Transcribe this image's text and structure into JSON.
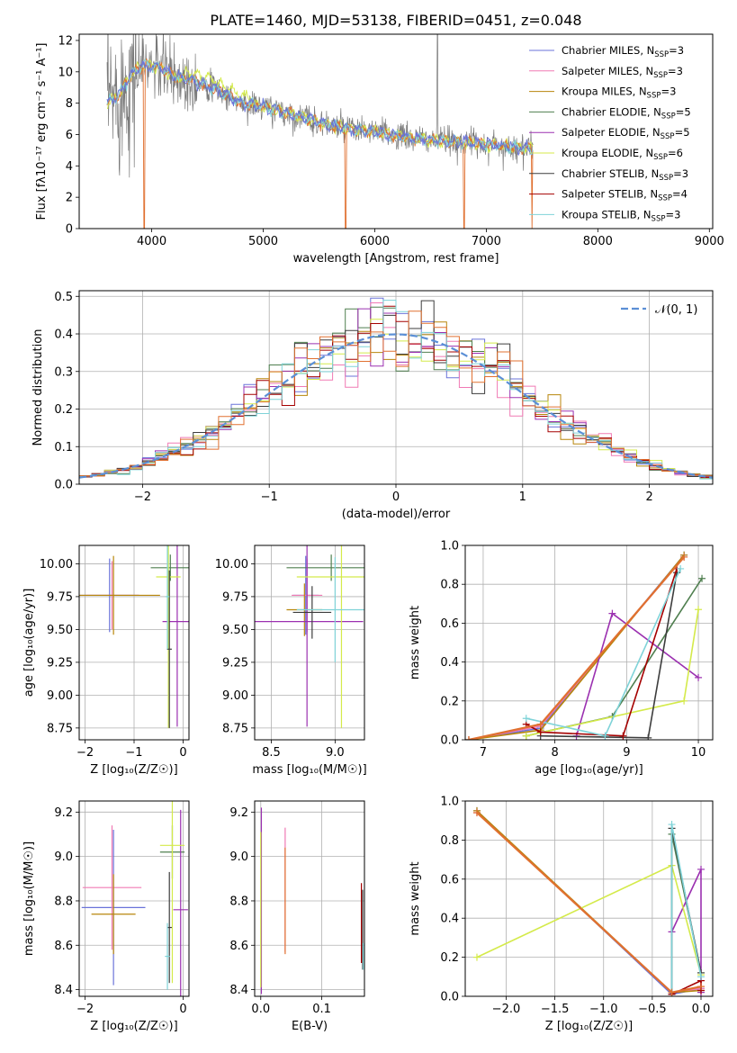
{
  "figure_title": "PLATE=1460, MJD=53138, FIBERID=0451, z=0.048",
  "colors": {
    "chabrier_miles": "#6a73d9",
    "salpeter_miles": "#f07ab4",
    "kroupa_miles": "#b8860b",
    "chabrier_elodie": "#4f7f4f",
    "salpeter_elodie": "#9b30b0",
    "kroupa_elodie": "#d4ea4a",
    "chabrier_stelib": "#3d3d3d",
    "salpeter_stelib": "#a50000",
    "kroupa_stelib": "#7fd3d8",
    "data": "#7a7a7a",
    "model_orange": "#e07030",
    "gaussian": "#5b8fd6"
  },
  "chart_data": [
    {
      "id": "spectrum",
      "type": "line",
      "title": "",
      "xlabel": "wavelength [Angstrom, rest frame]",
      "ylabel": "Flux [fλ10⁻¹⁷ erg cm⁻² s⁻¹ A⁻¹]",
      "xlim": [
        3350,
        9030
      ],
      "ylim": [
        0,
        12.4
      ],
      "xticks": [
        4000,
        5000,
        6000,
        7000,
        8000,
        9000
      ],
      "yticks": [
        0,
        2,
        4,
        6,
        8,
        10,
        12
      ],
      "grid": false,
      "legend_position": "top-right",
      "legend": [
        {
          "label": "Chabrier MILES, N",
          "sub": "SSP",
          "post": "=3",
          "color_key": "chabrier_miles"
        },
        {
          "label": "Salpeter MILES, N",
          "sub": "SSP",
          "post": "=3",
          "color_key": "salpeter_miles"
        },
        {
          "label": "Kroupa MILES, N",
          "sub": "SSP",
          "post": "=3",
          "color_key": "kroupa_miles"
        },
        {
          "label": "Chabrier ELODIE, N",
          "sub": "SSP",
          "post": "=5",
          "color_key": "chabrier_elodie"
        },
        {
          "label": "Salpeter ELODIE, N",
          "sub": "SSP",
          "post": "=5",
          "color_key": "salpeter_elodie"
        },
        {
          "label": "Kroupa ELODIE, N",
          "sub": "SSP",
          "post": "=6",
          "color_key": "kroupa_elodie"
        },
        {
          "label": "Chabrier STELIB, N",
          "sub": "SSP",
          "post": "=3",
          "color_key": "chabrier_stelib"
        },
        {
          "label": "Salpeter STELIB, N",
          "sub": "SSP",
          "post": "=4",
          "color_key": "salpeter_stelib"
        },
        {
          "label": "Kroupa STELIB, N",
          "sub": "SSP",
          "post": "=3",
          "color_key": "kroupa_stelib"
        }
      ],
      "continuum": [
        [
          3600,
          8.0
        ],
        [
          3700,
          8.5
        ],
        [
          3800,
          9.6
        ],
        [
          3900,
          10.4
        ],
        [
          4000,
          10.4
        ],
        [
          4100,
          10.2
        ],
        [
          4200,
          9.7
        ],
        [
          4400,
          9.4
        ],
        [
          4600,
          8.8
        ],
        [
          4800,
          8.0
        ],
        [
          5000,
          7.8
        ],
        [
          5200,
          7.4
        ],
        [
          5400,
          7.0
        ],
        [
          5600,
          6.6
        ],
        [
          5800,
          6.3
        ],
        [
          6000,
          6.2
        ],
        [
          6200,
          5.9
        ],
        [
          6400,
          5.7
        ],
        [
          6600,
          5.6
        ],
        [
          6800,
          5.5
        ],
        [
          7000,
          5.4
        ],
        [
          7200,
          5.2
        ],
        [
          7420,
          5.1
        ]
      ],
      "data_range": [
        3600,
        7420
      ],
      "model_dips": [
        [
          3934,
          0.0
        ],
        [
          5740,
          0.0
        ],
        [
          6800,
          0.0
        ],
        [
          7410,
          0.0
        ]
      ],
      "emission_spike": [
        6563,
        12.4
      ]
    },
    {
      "id": "residuals",
      "type": "histogram",
      "xlabel": "(data-model)/error",
      "ylabel": "Normed distribution",
      "xlim": [
        -2.5,
        2.5
      ],
      "ylim": [
        0,
        0.515
      ],
      "xticks": [
        -2,
        -1,
        0,
        1,
        2
      ],
      "yticks": [
        0.0,
        0.1,
        0.2,
        0.3,
        0.4,
        0.5
      ],
      "grid": true,
      "bin_width": 0.1,
      "legend_position": "top-right",
      "legend": [
        {
          "label": "𝒩(0, 1)",
          "color_key": "gaussian"
        }
      ]
    },
    {
      "id": "age_vs_Z",
      "type": "errorbar",
      "xlabel": "Z [log₁₀(Z/Z☉)]",
      "ylabel": "age  [log₁₀(age/yr)]",
      "xlim": [
        -2.12,
        0.12
      ],
      "ylim": [
        8.66,
        10.14
      ],
      "xticks": [
        -2,
        -1,
        0
      ],
      "yticks": [
        8.75,
        9.0,
        9.25,
        9.5,
        9.75,
        10.0
      ],
      "grid": true,
      "points": [
        {
          "color_key": "chabrier_miles",
          "x": -1.5,
          "y": 9.76,
          "xerr": 0.6,
          "yerr": 0.28
        },
        {
          "color_key": "salpeter_miles",
          "x": -1.45,
          "y": 9.76,
          "xerr": 0.55,
          "yerr": 0.26
        },
        {
          "color_key": "kroupa_miles",
          "x": -1.42,
          "y": 9.76,
          "xerr": 0.95,
          "yerr": 0.3
        },
        {
          "color_key": "chabrier_elodie",
          "x": -0.26,
          "y": 9.97,
          "xerr": 0.4,
          "yerr": 0.1
        },
        {
          "color_key": "salpeter_elodie",
          "x": -0.12,
          "y": 9.56,
          "xerr": 0.3,
          "yerr": 0.8
        },
        {
          "color_key": "kroupa_elodie",
          "x": -0.3,
          "y": 9.9,
          "xerr": 0.25,
          "yerr": 1.15
        },
        {
          "color_key": "chabrier_stelib",
          "x": -0.28,
          "y": 9.35,
          "xerr": 0.05,
          "yerr": 0.6
        },
        {
          "color_key": "kroupa_stelib",
          "x": -0.32,
          "y": 9.75,
          "xerr": 0.04,
          "yerr": 0.4
        }
      ]
    },
    {
      "id": "age_vs_mass",
      "type": "errorbar",
      "xlabel": "mass [log₁₀(M/M☉)]",
      "ylabel": "",
      "xlim": [
        8.37,
        9.23
      ],
      "ylim": [
        8.66,
        10.14
      ],
      "xticks": [
        8.5,
        9.0
      ],
      "yticks": [
        8.75,
        9.0,
        9.25,
        9.5,
        9.75,
        10.0
      ],
      "grid": true,
      "points": [
        {
          "color_key": "chabrier_miles",
          "x": 8.77,
          "y": 9.76,
          "xerr": 0.1,
          "yerr": 0.3
        },
        {
          "color_key": "salpeter_miles",
          "x": 8.78,
          "y": 9.76,
          "xerr": 0.12,
          "yerr": 0.28
        },
        {
          "color_key": "kroupa_miles",
          "x": 8.76,
          "y": 9.65,
          "xerr": 0.14,
          "yerr": 0.2
        },
        {
          "color_key": "chabrier_elodie",
          "x": 8.97,
          "y": 9.97,
          "xerr": 0.35,
          "yerr": 0.1
        },
        {
          "color_key": "salpeter_elodie",
          "x": 8.78,
          "y": 9.56,
          "xerr": 0.44,
          "yerr": 0.8
        },
        {
          "color_key": "kroupa_elodie",
          "x": 9.05,
          "y": 9.9,
          "xerr": 0.35,
          "yerr": 1.15
        },
        {
          "color_key": "chabrier_stelib",
          "x": 8.82,
          "y": 9.63,
          "xerr": 0.15,
          "yerr": 0.2
        },
        {
          "color_key": "kroupa_stelib",
          "x": 9.0,
          "y": 9.65,
          "xerr": 0.3,
          "yerr": 0.4
        }
      ]
    },
    {
      "id": "weight_vs_age",
      "type": "line",
      "xlabel": "age  [log₁₀(age/yr)]",
      "ylabel": "mass weight",
      "xlim": [
        6.75,
        10.2
      ],
      "ylim": [
        0,
        1
      ],
      "xticks": [
        7,
        8,
        9,
        10
      ],
      "yticks": [
        0.0,
        0.2,
        0.4,
        0.6,
        0.8,
        1.0
      ],
      "grid": true,
      "series": [
        {
          "color_key": "chabrier_miles",
          "x": [
            6.8,
            7.8,
            9.8
          ],
          "y": [
            0.0,
            0.06,
            0.95
          ]
        },
        {
          "color_key": "salpeter_miles",
          "x": [
            6.8,
            7.8,
            9.8
          ],
          "y": [
            0.0,
            0.07,
            0.94
          ]
        },
        {
          "color_key": "kroupa_miles",
          "x": [
            6.8,
            7.8,
            9.8
          ],
          "y": [
            0.0,
            0.05,
            0.95
          ]
        },
        {
          "color_key": "chabrier_elodie",
          "x": [
            7.6,
            8.8,
            10.05
          ],
          "y": [
            0.02,
            0.12,
            0.83
          ]
        },
        {
          "color_key": "salpeter_elodie",
          "x": [
            8.3,
            8.8,
            10.0
          ],
          "y": [
            0.02,
            0.65,
            0.32
          ]
        },
        {
          "color_key": "kroupa_elodie",
          "x": [
            7.6,
            9.8,
            10.0
          ],
          "y": [
            0.02,
            0.2,
            0.67
          ]
        },
        {
          "color_key": "chabrier_stelib",
          "x": [
            7.8,
            9.3,
            9.7
          ],
          "y": [
            0.02,
            0.01,
            0.86
          ]
        },
        {
          "color_key": "salpeter_stelib",
          "x": [
            7.6,
            7.8,
            8.95,
            9.7
          ],
          "y": [
            0.08,
            0.04,
            0.02,
            0.88
          ]
        },
        {
          "color_key": "kroupa_stelib",
          "x": [
            7.6,
            8.7,
            9.75
          ],
          "y": [
            0.11,
            0.02,
            0.88
          ]
        },
        {
          "color_key": "model_orange",
          "x": [
            6.8,
            7.8,
            9.8
          ],
          "y": [
            0.0,
            0.08,
            0.94
          ]
        }
      ]
    },
    {
      "id": "mass_vs_Z",
      "type": "errorbar",
      "xlabel": "Z [log₁₀(Z/Z☉)]",
      "ylabel": "mass [log₁₀(M/M☉)]",
      "xlim": [
        -2.12,
        0.12
      ],
      "ylim": [
        8.37,
        9.25
      ],
      "xticks": [
        -2,
        0
      ],
      "yticks": [
        8.4,
        8.6,
        8.8,
        9.0,
        9.2
      ],
      "grid": true,
      "points": [
        {
          "color_key": "chabrier_miles",
          "x": -1.42,
          "y": 8.77,
          "xerr": 0.65,
          "yerr": 0.35
        },
        {
          "color_key": "salpeter_miles",
          "x": -1.45,
          "y": 8.86,
          "xerr": 0.6,
          "yerr": 0.28
        },
        {
          "color_key": "kroupa_miles",
          "x": -1.42,
          "y": 8.74,
          "xerr": 0.45,
          "yerr": 0.18
        },
        {
          "color_key": "chabrier_elodie",
          "x": -0.22,
          "y": 9.02,
          "xerr": 0.25,
          "yerr": 0.12
        },
        {
          "color_key": "salpeter_elodie",
          "x": -0.05,
          "y": 8.76,
          "xerr": 0.15,
          "yerr": 0.45
        },
        {
          "color_key": "kroupa_elodie",
          "x": -0.22,
          "y": 9.05,
          "xerr": 0.25,
          "yerr": 0.62
        },
        {
          "color_key": "chabrier_stelib",
          "x": -0.28,
          "y": 8.68,
          "xerr": 0.05,
          "yerr": 0.25
        },
        {
          "color_key": "kroupa_stelib",
          "x": -0.32,
          "y": 8.55,
          "xerr": 0.05,
          "yerr": 0.15
        }
      ]
    },
    {
      "id": "mass_vs_ebv",
      "type": "errorbar",
      "xlabel": "E(B-V)",
      "ylabel": "",
      "xlim": [
        -0.01,
        0.17
      ],
      "ylim": [
        8.37,
        9.25
      ],
      "xticks": [
        0.0,
        0.1
      ],
      "yticks": [
        8.4,
        8.6,
        8.8,
        9.0,
        9.2
      ],
      "grid": true,
      "points": [
        {
          "color_key": "salpeter_elodie",
          "x": 0.001,
          "y": 8.8,
          "xerr": 0.0,
          "yerr": 0.42
        },
        {
          "color_key": "kroupa_elodie",
          "x": 0.0,
          "y": 8.76,
          "xerr": 0.0,
          "yerr": 0.35
        },
        {
          "color_key": "salpeter_miles",
          "x": 0.04,
          "y": 8.85,
          "xerr": 0.0,
          "yerr": 0.28
        },
        {
          "color_key": "model_orange",
          "x": 0.04,
          "y": 8.8,
          "xerr": 0.0,
          "yerr": 0.24
        },
        {
          "color_key": "salpeter_stelib",
          "x": 0.165,
          "y": 8.7,
          "xerr": 0.0,
          "yerr": 0.18
        },
        {
          "color_key": "chabrier_stelib",
          "x": 0.167,
          "y": 8.67,
          "xerr": 0.0,
          "yerr": 0.18
        },
        {
          "color_key": "kroupa_stelib",
          "x": 0.168,
          "y": 8.55,
          "xerr": 0.0,
          "yerr": 0.06
        }
      ]
    },
    {
      "id": "weight_vs_Z",
      "type": "line",
      "xlabel": "Z [log₁₀(Z/Z☉)]",
      "ylabel": "mass weight",
      "xlim": [
        -2.42,
        0.12
      ],
      "ylim": [
        0,
        1
      ],
      "xticks": [
        -2.0,
        -1.5,
        -1.0,
        -0.5,
        0.0
      ],
      "yticks": [
        0.0,
        0.2,
        0.4,
        0.6,
        0.8,
        1.0
      ],
      "grid": true,
      "series": [
        {
          "color_key": "chabrier_miles",
          "x": [
            -2.3,
            -0.3,
            0.0
          ],
          "y": [
            0.95,
            0.01,
            0.04
          ]
        },
        {
          "color_key": "salpeter_miles",
          "x": [
            -2.3,
            -0.3,
            0.0
          ],
          "y": [
            0.94,
            0.02,
            0.04
          ]
        },
        {
          "color_key": "kroupa_miles",
          "x": [
            -2.3,
            -0.3,
            0.0
          ],
          "y": [
            0.95,
            0.02,
            0.03
          ]
        },
        {
          "color_key": "chabrier_elodie",
          "x": [
            -0.3,
            0.0
          ],
          "y": [
            0.83,
            0.12
          ]
        },
        {
          "color_key": "salpeter_elodie",
          "x": [
            -0.3,
            0.0,
            0.0
          ],
          "y": [
            0.33,
            0.65,
            0.02
          ]
        },
        {
          "color_key": "kroupa_elodie",
          "x": [
            -2.3,
            -0.3,
            0.0
          ],
          "y": [
            0.2,
            0.67,
            0.11
          ]
        },
        {
          "color_key": "chabrier_stelib",
          "x": [
            -0.3,
            -0.3,
            0.0
          ],
          "y": [
            0.01,
            0.86,
            0.12
          ]
        },
        {
          "color_key": "salpeter_stelib",
          "x": [
            -0.3,
            0.0,
            0.0
          ],
          "y": [
            0.01,
            0.08,
            0.03
          ]
        },
        {
          "color_key": "kroupa_stelib",
          "x": [
            -0.3,
            -0.3,
            0.0
          ],
          "y": [
            0.02,
            0.88,
            0.1
          ]
        },
        {
          "color_key": "model_orange",
          "x": [
            -2.3,
            -0.3,
            0.0
          ],
          "y": [
            0.94,
            0.02,
            0.05
          ]
        }
      ]
    }
  ]
}
